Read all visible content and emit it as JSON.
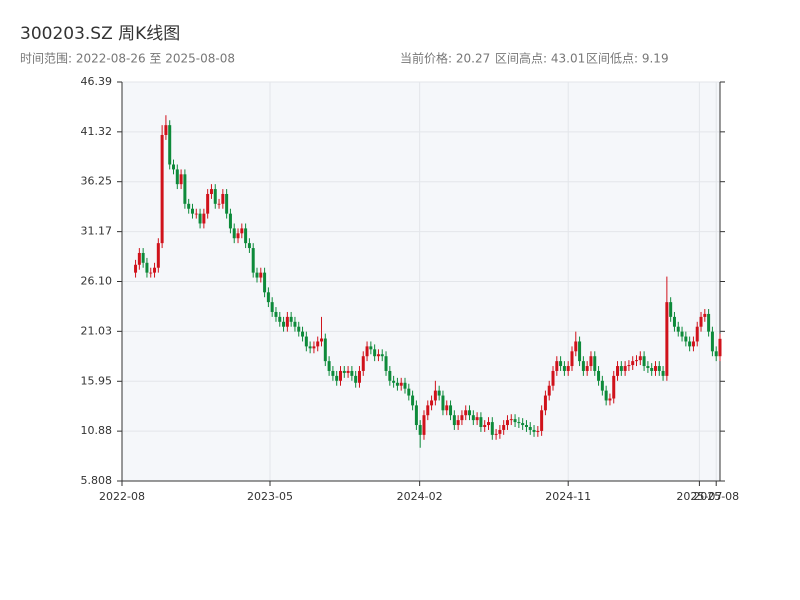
{
  "chart_data": {
    "type": "candlestick",
    "title": "300203.SZ 周K线图",
    "subtitle": "时间范围: 2022-08-26 至 2025-08-08",
    "stats": [
      "当前价格: 20.27",
      "区间高点: 43.01",
      "区间低点: 9.19"
    ],
    "up_color": "#d0121b",
    "down_color": "#0d8a3a",
    "xlim": [
      "2022-08-01",
      "2025-08-08"
    ],
    "xticks": [
      {
        "value": "2022-08-01",
        "label": "2022-08"
      },
      {
        "value": "2023-05-01",
        "label": "2023-05"
      },
      {
        "value": "2024-02-01",
        "label": "2024-02"
      },
      {
        "value": "2024-11-01",
        "label": "2024-11"
      },
      {
        "value": "2025-07-01",
        "label": "2025-07"
      },
      {
        "value": "2025-08-01",
        "label": "2025-08"
      }
    ],
    "ylim": [
      5.808,
      46.39
    ],
    "yticks": [
      5.808,
      10.88,
      15.95,
      21.03,
      {
        "value": 26.1,
        "label": "26.10"
      },
      31.17,
      36.25,
      41.32,
      46.39
    ],
    "grid": true,
    "x": [
      "2022-08-26",
      "2022-09-02",
      "2022-09-09",
      "2022-09-16",
      "2022-09-23",
      "2022-09-30",
      "2022-10-07",
      "2022-10-14",
      "2022-10-21",
      "2022-10-28",
      "2022-11-04",
      "2022-11-11",
      "2022-11-18",
      "2022-11-25",
      "2022-12-02",
      "2022-12-09",
      "2022-12-16",
      "2022-12-23",
      "2022-12-30",
      "2023-01-06",
      "2023-01-13",
      "2023-01-20",
      "2023-01-27",
      "2023-02-03",
      "2023-02-10",
      "2023-02-17",
      "2023-02-24",
      "2023-03-03",
      "2023-03-10",
      "2023-03-17",
      "2023-03-24",
      "2023-03-31",
      "2023-04-07",
      "2023-04-14",
      "2023-04-21",
      "2023-04-28",
      "2023-05-05",
      "2023-05-12",
      "2023-05-19",
      "2023-05-26",
      "2023-06-02",
      "2023-06-09",
      "2023-06-16",
      "2023-06-23",
      "2023-06-30",
      "2023-07-07",
      "2023-07-14",
      "2023-07-21",
      "2023-07-28",
      "2023-08-04",
      "2023-08-11",
      "2023-08-18",
      "2023-08-25",
      "2023-09-01",
      "2023-09-08",
      "2023-09-15",
      "2023-09-22",
      "2023-09-29",
      "2023-10-06",
      "2023-10-13",
      "2023-10-20",
      "2023-10-27",
      "2023-11-03",
      "2023-11-10",
      "2023-11-17",
      "2023-11-24",
      "2023-12-01",
      "2023-12-08",
      "2023-12-15",
      "2023-12-22",
      "2023-12-29",
      "2024-01-05",
      "2024-01-12",
      "2024-01-19",
      "2024-01-26",
      "2024-02-02",
      "2024-02-09",
      "2024-02-16",
      "2024-02-23",
      "2024-03-01",
      "2024-03-08",
      "2024-03-15",
      "2024-03-22",
      "2024-03-29",
      "2024-04-05",
      "2024-04-12",
      "2024-04-19",
      "2024-04-26",
      "2024-05-03",
      "2024-05-10",
      "2024-05-17",
      "2024-05-24",
      "2024-05-31",
      "2024-06-07",
      "2024-06-14",
      "2024-06-21",
      "2024-06-28",
      "2024-07-05",
      "2024-07-12",
      "2024-07-19",
      "2024-07-26",
      "2024-08-02",
      "2024-08-09",
      "2024-08-16",
      "2024-08-23",
      "2024-08-30",
      "2024-09-06",
      "2024-09-13",
      "2024-09-20",
      "2024-09-27",
      "2024-10-04",
      "2024-10-11",
      "2024-10-18",
      "2024-10-25",
      "2024-11-01",
      "2024-11-08",
      "2024-11-15",
      "2024-11-22",
      "2024-11-29",
      "2024-12-06",
      "2024-12-13",
      "2024-12-20",
      "2024-12-27",
      "2025-01-03",
      "2025-01-10",
      "2025-01-17",
      "2025-01-24",
      "2025-01-31",
      "2025-02-07",
      "2025-02-14",
      "2025-02-21",
      "2025-02-28",
      "2025-03-07",
      "2025-03-14",
      "2025-03-21",
      "2025-03-28",
      "2025-04-04",
      "2025-04-11",
      "2025-04-18",
      "2025-04-25",
      "2025-05-02",
      "2025-05-09",
      "2025-05-16",
      "2025-05-23",
      "2025-05-30",
      "2025-06-06",
      "2025-06-13",
      "2025-06-20",
      "2025-06-27",
      "2025-07-04",
      "2025-07-11",
      "2025-07-18",
      "2025-07-25",
      "2025-08-01",
      "2025-08-08"
    ],
    "ohlc": [
      [
        27,
        28.3,
        26.5,
        27.8
      ],
      [
        27.8,
        29.5,
        27.3,
        29
      ],
      [
        29,
        29.5,
        27.5,
        28
      ],
      [
        28,
        28.5,
        26.5,
        27
      ],
      [
        27,
        27.5,
        26.5,
        27
      ],
      [
        27,
        28,
        26.5,
        27.5
      ],
      [
        27.5,
        30.5,
        27,
        30
      ],
      [
        30,
        42,
        29.5,
        41
      ],
      [
        41,
        43.01,
        40.5,
        42
      ],
      [
        42,
        42.5,
        37.5,
        38
      ],
      [
        38,
        38.5,
        37,
        37.5
      ],
      [
        37.5,
        38,
        35.5,
        36
      ],
      [
        36,
        37.5,
        35.5,
        37
      ],
      [
        37,
        37.5,
        33.5,
        34
      ],
      [
        34,
        34.5,
        33,
        33.5
      ],
      [
        33.5,
        34,
        32.5,
        33
      ],
      [
        33,
        33.5,
        32.5,
        33
      ],
      [
        33,
        33.5,
        31.5,
        32
      ],
      [
        32,
        33.5,
        31.5,
        33
      ],
      [
        33,
        35.5,
        32.5,
        35
      ],
      [
        35,
        36,
        34.5,
        35.5
      ],
      [
        35.5,
        36,
        33.5,
        34
      ],
      [
        34,
        34.5,
        33.5,
        34
      ],
      [
        34,
        35.5,
        33.5,
        35
      ],
      [
        35,
        35.5,
        32.5,
        33
      ],
      [
        33,
        33.5,
        31,
        31.5
      ],
      [
        31.5,
        32,
        30,
        30.5
      ],
      [
        30.5,
        31.5,
        30,
        31
      ],
      [
        31,
        32,
        30.5,
        31.5
      ],
      [
        31.5,
        32,
        29.5,
        30
      ],
      [
        30,
        30.5,
        29,
        29.5
      ],
      [
        29.5,
        30,
        26.5,
        27
      ],
      [
        27,
        27.5,
        26,
        26.5
      ],
      [
        26.5,
        27.5,
        26,
        27
      ],
      [
        27,
        27.5,
        24.5,
        25
      ],
      [
        25,
        25.5,
        23.5,
        24
      ],
      [
        24,
        24.5,
        22.5,
        23
      ],
      [
        23,
        23.5,
        22,
        22.5
      ],
      [
        22.5,
        23,
        21.5,
        22
      ],
      [
        22,
        22.5,
        21,
        21.5
      ],
      [
        21.5,
        23,
        21,
        22.5
      ],
      [
        22.5,
        23,
        21.5,
        22
      ],
      [
        22,
        22.5,
        21,
        21.5
      ],
      [
        21.5,
        22,
        20.5,
        21
      ],
      [
        21,
        21.5,
        20,
        20.5
      ],
      [
        20.5,
        21,
        19,
        19.5
      ],
      [
        19.5,
        20,
        18.8,
        19.3
      ],
      [
        19.3,
        20,
        18.8,
        19.5
      ],
      [
        19.5,
        20.5,
        19,
        20
      ],
      [
        20,
        22.5,
        19.5,
        20.3
      ],
      [
        20.3,
        20.8,
        17.5,
        18
      ],
      [
        18,
        18.5,
        16.5,
        17
      ],
      [
        17,
        17.5,
        16,
        16.5
      ],
      [
        16.5,
        17,
        15.5,
        16
      ],
      [
        16,
        17.5,
        15.5,
        17
      ],
      [
        17,
        17.5,
        16.3,
        16.8
      ],
      [
        16.8,
        17.5,
        16.3,
        17
      ],
      [
        17,
        17.5,
        16,
        16.5
      ],
      [
        16.5,
        17,
        15.3,
        15.8
      ],
      [
        15.8,
        17.5,
        15.3,
        17
      ],
      [
        17,
        19,
        16.5,
        18.5
      ],
      [
        18.5,
        20,
        18,
        19.5
      ],
      [
        19.5,
        20,
        18.7,
        19.2
      ],
      [
        19.2,
        19.7,
        18,
        18.5
      ],
      [
        18.5,
        19.2,
        18,
        18.7
      ],
      [
        18.7,
        19.2,
        18,
        18.5
      ],
      [
        18.5,
        19,
        16.5,
        17
      ],
      [
        17,
        17.5,
        15.5,
        16
      ],
      [
        16,
        16.5,
        15.3,
        15.8
      ],
      [
        15.8,
        16.3,
        15,
        15.5
      ],
      [
        15.5,
        16.3,
        15,
        15.8
      ],
      [
        15.8,
        16.3,
        14.7,
        15.2
      ],
      [
        15.2,
        15.7,
        14,
        14.5
      ],
      [
        14.5,
        15,
        13,
        13.5
      ],
      [
        13.5,
        14,
        11,
        11.5
      ],
      [
        11.5,
        12,
        9.19,
        10.5
      ],
      [
        10.5,
        13,
        10,
        12.5
      ],
      [
        12.5,
        14,
        12,
        13.5
      ],
      [
        13.5,
        14.5,
        13,
        14
      ],
      [
        14,
        16,
        13.5,
        15
      ],
      [
        15,
        15.5,
        14,
        14.5
      ],
      [
        14.5,
        15,
        12.5,
        13
      ],
      [
        13,
        14,
        12.5,
        13.5
      ],
      [
        13.5,
        14,
        12,
        12.5
      ],
      [
        12.5,
        13,
        11,
        11.5
      ],
      [
        11.5,
        12.5,
        11,
        12
      ],
      [
        12,
        13,
        11.5,
        12.5
      ],
      [
        12.5,
        13.5,
        12,
        13
      ],
      [
        13,
        13.5,
        12,
        12.5
      ],
      [
        12.5,
        13,
        11.5,
        12
      ],
      [
        12,
        12.8,
        11.5,
        12.3
      ],
      [
        12.3,
        12.8,
        10.8,
        11.3
      ],
      [
        11.3,
        12,
        10.8,
        11.5
      ],
      [
        11.5,
        12.3,
        11,
        11.8
      ],
      [
        11.8,
        12.3,
        10,
        10.5
      ],
      [
        10.5,
        11.1,
        10,
        10.6
      ],
      [
        10.6,
        11.5,
        10.1,
        11
      ],
      [
        11,
        12,
        10.5,
        11.5
      ],
      [
        11.5,
        12.5,
        11,
        12
      ],
      [
        12,
        12.6,
        11.5,
        12.1
      ],
      [
        12.1,
        12.6,
        11.3,
        11.8
      ],
      [
        11.8,
        12.3,
        11.2,
        11.7
      ],
      [
        11.7,
        12.2,
        11,
        11.5
      ],
      [
        11.5,
        12,
        10.8,
        11.3
      ],
      [
        11.3,
        11.8,
        10.5,
        11
      ],
      [
        11,
        11.5,
        10.3,
        10.8
      ],
      [
        10.8,
        11.4,
        10.3,
        10.9
      ],
      [
        10.9,
        13.5,
        10.4,
        13
      ],
      [
        13,
        15,
        12.5,
        14.5
      ],
      [
        14.5,
        16,
        14,
        15.5
      ],
      [
        15.5,
        17.5,
        15,
        17
      ],
      [
        17,
        18.5,
        16.5,
        18
      ],
      [
        18,
        18.5,
        17,
        17.5
      ],
      [
        17.5,
        18,
        16.5,
        17
      ],
      [
        17,
        18,
        16.5,
        17.5
      ],
      [
        17.5,
        19.5,
        17,
        19
      ],
      [
        19,
        21,
        18.5,
        20
      ],
      [
        20,
        20.5,
        17.5,
        18
      ],
      [
        18,
        18.5,
        16.5,
        17
      ],
      [
        17,
        18,
        16.5,
        17.5
      ],
      [
        17.5,
        19,
        17,
        18.5
      ],
      [
        18.5,
        19,
        16.5,
        17
      ],
      [
        17,
        17.5,
        15.5,
        16
      ],
      [
        16,
        16.5,
        14.5,
        15
      ],
      [
        15,
        15.5,
        13.5,
        14
      ],
      [
        14,
        14.7,
        13.5,
        14.2
      ],
      [
        14.2,
        17,
        13.7,
        16.5
      ],
      [
        16.5,
        18,
        16,
        17.5
      ],
      [
        17.5,
        18,
        16.5,
        17
      ],
      [
        17,
        18,
        16.5,
        17.5
      ],
      [
        17.5,
        18.1,
        17,
        17.6
      ],
      [
        17.6,
        18.5,
        17.1,
        18
      ],
      [
        18,
        18.6,
        17.5,
        18.1
      ],
      [
        18.1,
        19,
        17.6,
        18.5
      ],
      [
        18.5,
        19,
        17,
        17.5
      ],
      [
        17.5,
        18,
        16.8,
        17.3
      ],
      [
        17.3,
        17.8,
        16.5,
        17
      ],
      [
        17,
        18,
        16.5,
        17.5
      ],
      [
        17.5,
        18,
        16.5,
        17
      ],
      [
        17,
        17.5,
        16,
        16.5
      ],
      [
        16.5,
        26.6,
        16,
        24
      ],
      [
        24,
        24.5,
        22,
        22.5
      ],
      [
        22.5,
        23,
        21,
        21.5
      ],
      [
        21.5,
        22,
        20.5,
        21
      ],
      [
        21,
        21.5,
        20,
        20.5
      ],
      [
        20.5,
        21,
        19.5,
        20
      ],
      [
        20,
        20.5,
        19,
        19.5
      ],
      [
        19.5,
        20.5,
        19,
        20
      ],
      [
        20,
        22,
        19.5,
        21.5
      ],
      [
        21.5,
        23,
        21,
        22.5
      ],
      [
        22.5,
        23.3,
        22,
        22.8
      ],
      [
        22.8,
        23.3,
        20.5,
        21
      ],
      [
        21,
        21.5,
        18.5,
        19
      ],
      [
        19,
        19.5,
        18,
        18.5
      ],
      [
        18.5,
        20.8,
        18,
        20.27
      ]
    ]
  }
}
